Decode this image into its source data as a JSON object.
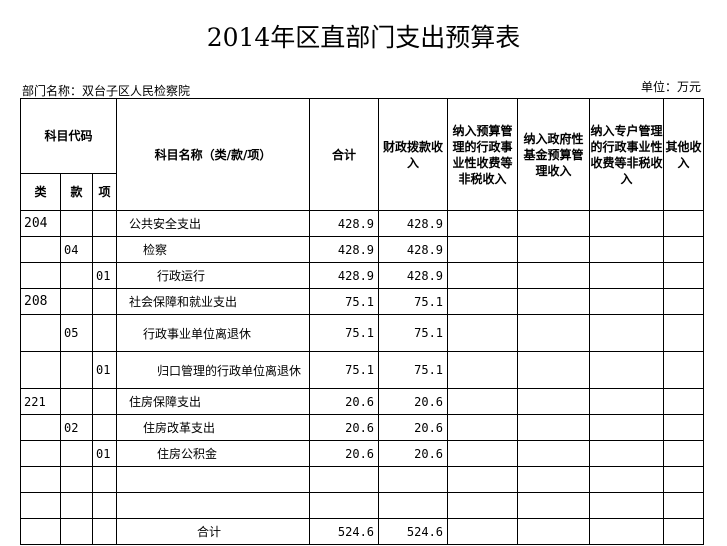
{
  "title": "2014年区直部门支出预算表",
  "department": "部门名称：双台子区人民检察院",
  "unit": "单位：万元",
  "headers": {
    "code_group": "科目代码",
    "lei": "类",
    "kuan": "款",
    "xiang": "项",
    "name": "科目名称（类/款/项）",
    "total": "合计",
    "fiscal": "财政拨款收入",
    "budget_mgmt": "纳入预算管理的行政事业性收费等非税收入",
    "gov_fund": "纳入政府性基金预算管理收入",
    "special_mgmt": "纳入专户管理的行政事业性收费等非税收入",
    "other": "其他收入"
  },
  "rows": [
    {
      "lei": "204",
      "kuan": "",
      "xiang": "",
      "name": "公共安全支出",
      "level": 0,
      "total": "428.9",
      "fiscal": "428.9",
      "big": true,
      "tall": false
    },
    {
      "lei": "",
      "kuan": "04",
      "xiang": "",
      "name": "检察",
      "level": 1,
      "total": "428.9",
      "fiscal": "428.9",
      "big": false,
      "tall": false
    },
    {
      "lei": "",
      "kuan": "",
      "xiang": "01",
      "name": "行政运行",
      "level": 2,
      "total": "428.9",
      "fiscal": "428.9",
      "big": false,
      "tall": false
    },
    {
      "lei": "208",
      "kuan": "",
      "xiang": "",
      "name": "社会保障和就业支出",
      "level": 0,
      "total": "75.1",
      "fiscal": "75.1",
      "big": true,
      "tall": false
    },
    {
      "lei": "",
      "kuan": "05",
      "xiang": "",
      "name": "行政事业单位离退休",
      "level": 1,
      "total": "75.1",
      "fiscal": "75.1",
      "big": false,
      "tall": true
    },
    {
      "lei": "",
      "kuan": "",
      "xiang": "01",
      "name": "归口管理的行政单位离退休",
      "level": 2,
      "total": "75.1",
      "fiscal": "75.1",
      "big": false,
      "tall": true
    },
    {
      "lei": "221",
      "kuan": "",
      "xiang": "",
      "name": "住房保障支出",
      "level": 0,
      "total": "20.6",
      "fiscal": "20.6",
      "big": false,
      "tall": false
    },
    {
      "lei": "",
      "kuan": "02",
      "xiang": "",
      "name": "住房改革支出",
      "level": 1,
      "total": "20.6",
      "fiscal": "20.6",
      "big": false,
      "tall": false
    },
    {
      "lei": "",
      "kuan": "",
      "xiang": "01",
      "name": "住房公积金",
      "level": 2,
      "total": "20.6",
      "fiscal": "20.6",
      "big": false,
      "tall": false
    },
    {
      "lei": "",
      "kuan": "",
      "xiang": "",
      "name": "",
      "level": 0,
      "total": "",
      "fiscal": "",
      "big": false,
      "tall": false
    },
    {
      "lei": "",
      "kuan": "",
      "xiang": "",
      "name": "",
      "level": 0,
      "total": "",
      "fiscal": "",
      "big": false,
      "tall": false
    }
  ],
  "total_row": {
    "label": "合计",
    "total": "524.6",
    "fiscal": "524.6"
  }
}
